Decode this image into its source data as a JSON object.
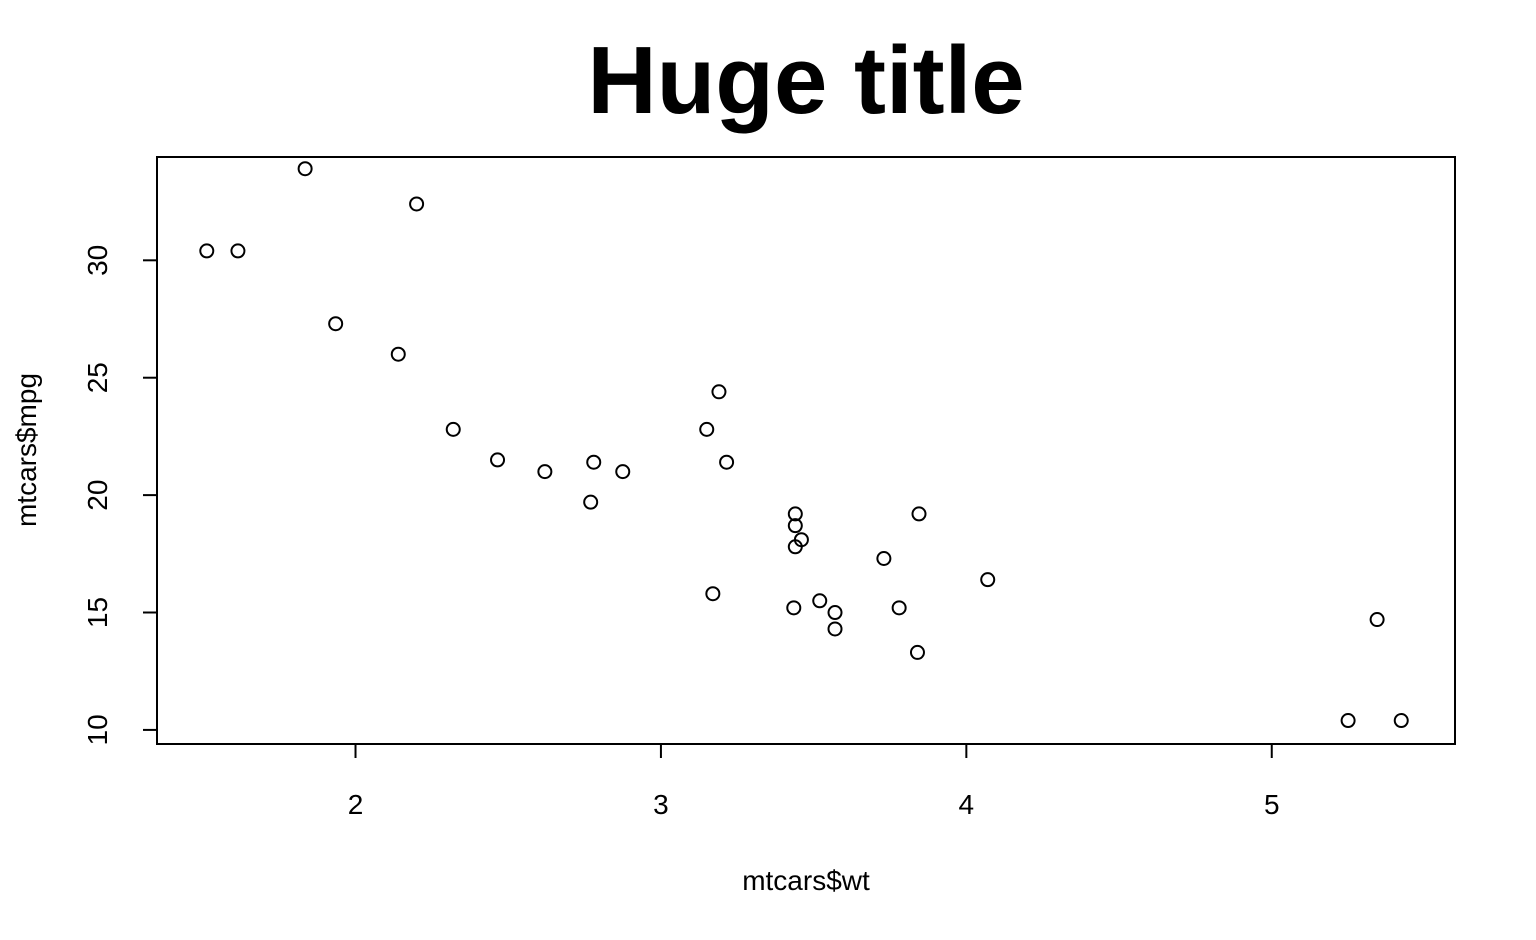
{
  "chart_data": {
    "type": "scatter",
    "title": "Huge title",
    "xlabel": "mtcars$wt",
    "ylabel": "mtcars$mpg",
    "xlim": [
      1.35,
      5.6
    ],
    "ylim": [
      9.4,
      34.4
    ],
    "x_ticks": [
      2,
      3,
      4,
      5
    ],
    "y_ticks": [
      10,
      15,
      20,
      25,
      30
    ],
    "grid": false,
    "legend": "none",
    "marker": "open-circle",
    "colors": {
      "points": "#000000",
      "frame": "#000000",
      "background": "#ffffff"
    },
    "points": [
      {
        "x": 1.513,
        "y": 30.4
      },
      {
        "x": 1.615,
        "y": 30.4
      },
      {
        "x": 1.835,
        "y": 33.9
      },
      {
        "x": 1.935,
        "y": 27.3
      },
      {
        "x": 2.14,
        "y": 26.0
      },
      {
        "x": 2.2,
        "y": 32.4
      },
      {
        "x": 2.32,
        "y": 22.8
      },
      {
        "x": 2.465,
        "y": 21.5
      },
      {
        "x": 2.62,
        "y": 21.0
      },
      {
        "x": 2.77,
        "y": 19.7
      },
      {
        "x": 2.78,
        "y": 21.4
      },
      {
        "x": 2.875,
        "y": 21.0
      },
      {
        "x": 3.15,
        "y": 22.8
      },
      {
        "x": 3.17,
        "y": 15.8
      },
      {
        "x": 3.19,
        "y": 24.4
      },
      {
        "x": 3.215,
        "y": 21.4
      },
      {
        "x": 3.435,
        "y": 15.2
      },
      {
        "x": 3.44,
        "y": 18.7
      },
      {
        "x": 3.44,
        "y": 19.2
      },
      {
        "x": 3.44,
        "y": 17.8
      },
      {
        "x": 3.46,
        "y": 18.1
      },
      {
        "x": 3.52,
        "y": 15.5
      },
      {
        "x": 3.57,
        "y": 15.0
      },
      {
        "x": 3.57,
        "y": 14.3
      },
      {
        "x": 3.73,
        "y": 17.3
      },
      {
        "x": 3.78,
        "y": 15.2
      },
      {
        "x": 3.84,
        "y": 13.3
      },
      {
        "x": 3.845,
        "y": 19.2
      },
      {
        "x": 4.07,
        "y": 16.4
      },
      {
        "x": 5.25,
        "y": 10.4
      },
      {
        "x": 5.345,
        "y": 14.7
      },
      {
        "x": 5.424,
        "y": 10.4
      }
    ]
  }
}
